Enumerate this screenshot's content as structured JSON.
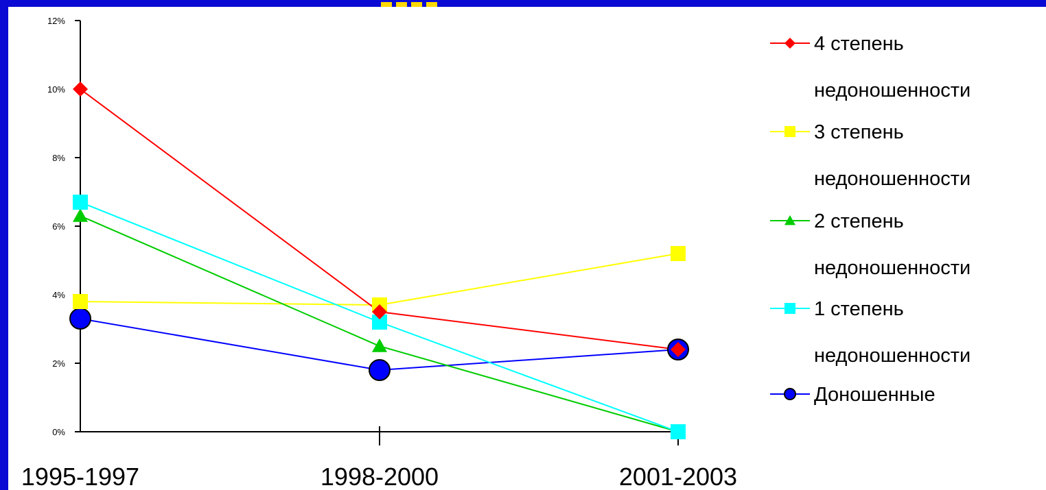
{
  "chart_data": {
    "type": "line",
    "categories": [
      "1995-1997",
      "1998-2000",
      "2001-2003"
    ],
    "yticks": [
      "0%",
      "2%",
      "4%",
      "6%",
      "8%",
      "10%",
      "12%"
    ],
    "ylim": [
      0,
      12
    ],
    "grid": false,
    "legend_position": "right",
    "series": [
      {
        "name_line1": "4 степень",
        "name_line2": "недоношенности",
        "values": [
          10.0,
          3.5,
          2.4
        ],
        "color": "#ff0000",
        "marker": "diamond"
      },
      {
        "name_line1": "3 степень",
        "name_line2": "недоношенности",
        "values": [
          3.8,
          3.7,
          5.2
        ],
        "color": "#ffff00",
        "marker": "square"
      },
      {
        "name_line1": "2 степень",
        "name_line2": "недоношенности",
        "values": [
          6.3,
          2.5,
          0.0
        ],
        "color": "#00cc00",
        "marker": "triangle"
      },
      {
        "name_line1": "1 степень",
        "name_line2": "недоношенности",
        "values": [
          6.7,
          3.2,
          0.0
        ],
        "color": "#00ffff",
        "marker": "square"
      },
      {
        "name_line1": "Доношенные",
        "name_line2": "",
        "values": [
          3.3,
          1.8,
          2.4
        ],
        "color": "#0000ff",
        "marker": "circle"
      }
    ]
  }
}
